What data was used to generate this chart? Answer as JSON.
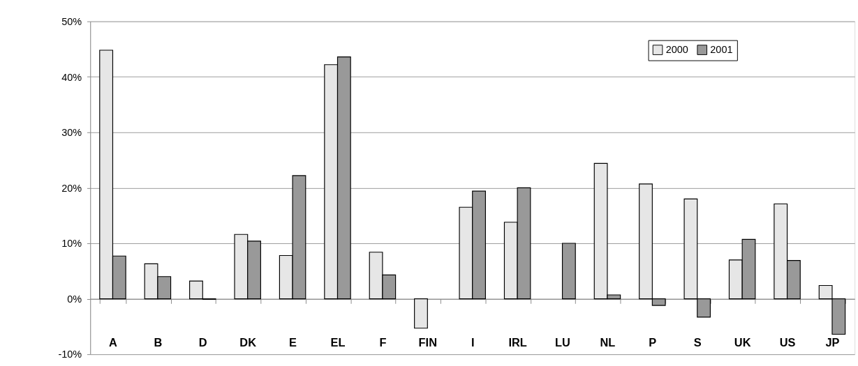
{
  "chart_data": {
    "type": "bar",
    "categories": [
      "A",
      "B",
      "D",
      "DK",
      "E",
      "EL",
      "F",
      "FIN",
      "I",
      "IRL",
      "LU",
      "NL",
      "P",
      "S",
      "UK",
      "US",
      "JP"
    ],
    "series": [
      {
        "name": "2000",
        "color": "#e6e6e6",
        "values": [
          44.8,
          6.3,
          3.2,
          11.6,
          7.8,
          42.2,
          8.4,
          -5.3,
          16.5,
          13.8,
          null,
          24.4,
          20.7,
          18.0,
          7.0,
          17.1,
          2.4
        ]
      },
      {
        "name": "2001",
        "color": "#999999",
        "values": [
          7.7,
          4.0,
          -0.1,
          10.4,
          22.2,
          43.6,
          4.3,
          null,
          19.4,
          20.0,
          10.0,
          0.7,
          -1.2,
          -3.3,
          10.7,
          6.9,
          -6.4
        ]
      }
    ],
    "ylim": [
      -10,
      50
    ],
    "yticks": [
      {
        "value": -10,
        "label": "-10%"
      },
      {
        "value": 0,
        "label": "0%"
      },
      {
        "value": 10,
        "label": "10%"
      },
      {
        "value": 20,
        "label": "20%"
      },
      {
        "value": 30,
        "label": "30%"
      },
      {
        "value": 40,
        "label": "40%"
      },
      {
        "value": 50,
        "label": "50%"
      }
    ],
    "grid": "y",
    "legend": "top right"
  }
}
